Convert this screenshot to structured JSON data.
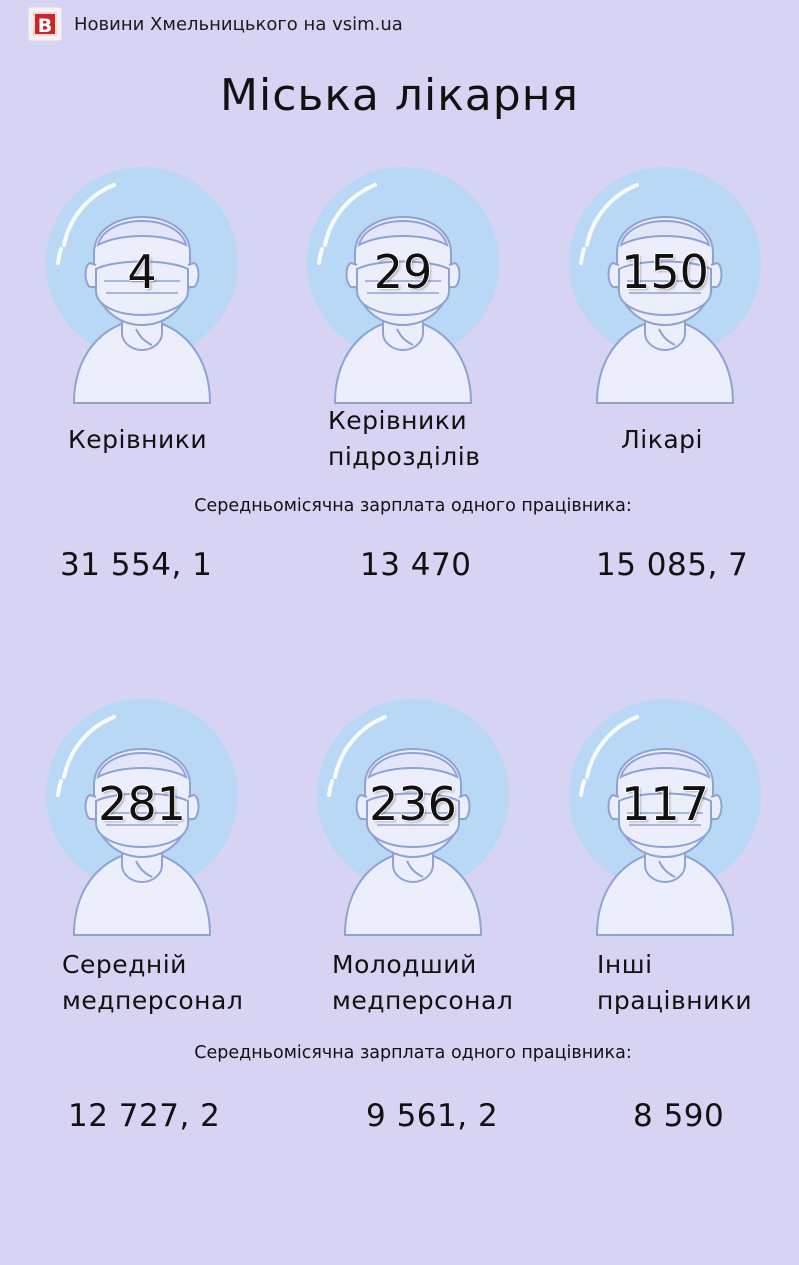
{
  "header": {
    "logo_letter": "B",
    "source": "Новини Хмельницького на vsim.ua"
  },
  "title": "Міська лікарня",
  "colors": {
    "background": "#d6d3f3",
    "circle": "#b8d8f5",
    "figure": "#eceefb",
    "outline": "#8fa3d3"
  },
  "rows": [
    {
      "cards": [
        {
          "count": "4",
          "label": [
            "Керівники"
          ]
        },
        {
          "count": "29",
          "label": [
            "Керівники",
            "підрозділів"
          ]
        },
        {
          "count": "150",
          "label": [
            "Лікарі"
          ]
        }
      ],
      "salary_caption": "Середньомісячна зарплата одного працівника:",
      "salaries": [
        "31 554, 1",
        "13 470",
        "15 085, 7"
      ]
    },
    {
      "cards": [
        {
          "count": "281",
          "label": [
            "Середній",
            "медперсонал"
          ]
        },
        {
          "count": "236",
          "label": [
            "Молодший",
            "медперсонал"
          ]
        },
        {
          "count": "117",
          "label": [
            "Інші",
            "працівники"
          ]
        }
      ],
      "salary_caption": "Середньомісячна зарплата одного працівника:",
      "salaries": [
        "12 727, 2",
        "9 561, 2",
        "8 590"
      ]
    }
  ]
}
